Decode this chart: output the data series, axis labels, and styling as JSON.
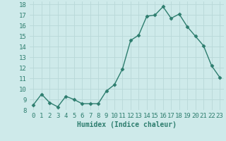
{
  "x": [
    0,
    1,
    2,
    3,
    4,
    5,
    6,
    7,
    8,
    9,
    10,
    11,
    12,
    13,
    14,
    15,
    16,
    17,
    18,
    19,
    20,
    21,
    22,
    23
  ],
  "y": [
    8.5,
    9.5,
    8.7,
    8.3,
    9.3,
    9.0,
    8.6,
    8.6,
    8.6,
    9.8,
    10.4,
    11.9,
    14.6,
    15.1,
    16.9,
    17.0,
    17.8,
    16.7,
    17.1,
    15.9,
    15.0,
    14.1,
    12.2,
    11.1
  ],
  "line_color": "#2d7d6e",
  "marker": "D",
  "markersize": 2.5,
  "linewidth": 1.0,
  "bg_color": "#ceeaea",
  "grid_color": "#b8d8d8",
  "xlabel": "Humidex (Indice chaleur)",
  "xlabel_fontsize": 7,
  "tick_fontsize": 6.5,
  "ylim": [
    8,
    18.3
  ],
  "xlim": [
    -0.5,
    23.5
  ],
  "yticks": [
    8,
    9,
    10,
    11,
    12,
    13,
    14,
    15,
    16,
    17,
    18
  ],
  "xticks": [
    0,
    1,
    2,
    3,
    4,
    5,
    6,
    7,
    8,
    9,
    10,
    11,
    12,
    13,
    14,
    15,
    16,
    17,
    18,
    19,
    20,
    21,
    22,
    23
  ]
}
